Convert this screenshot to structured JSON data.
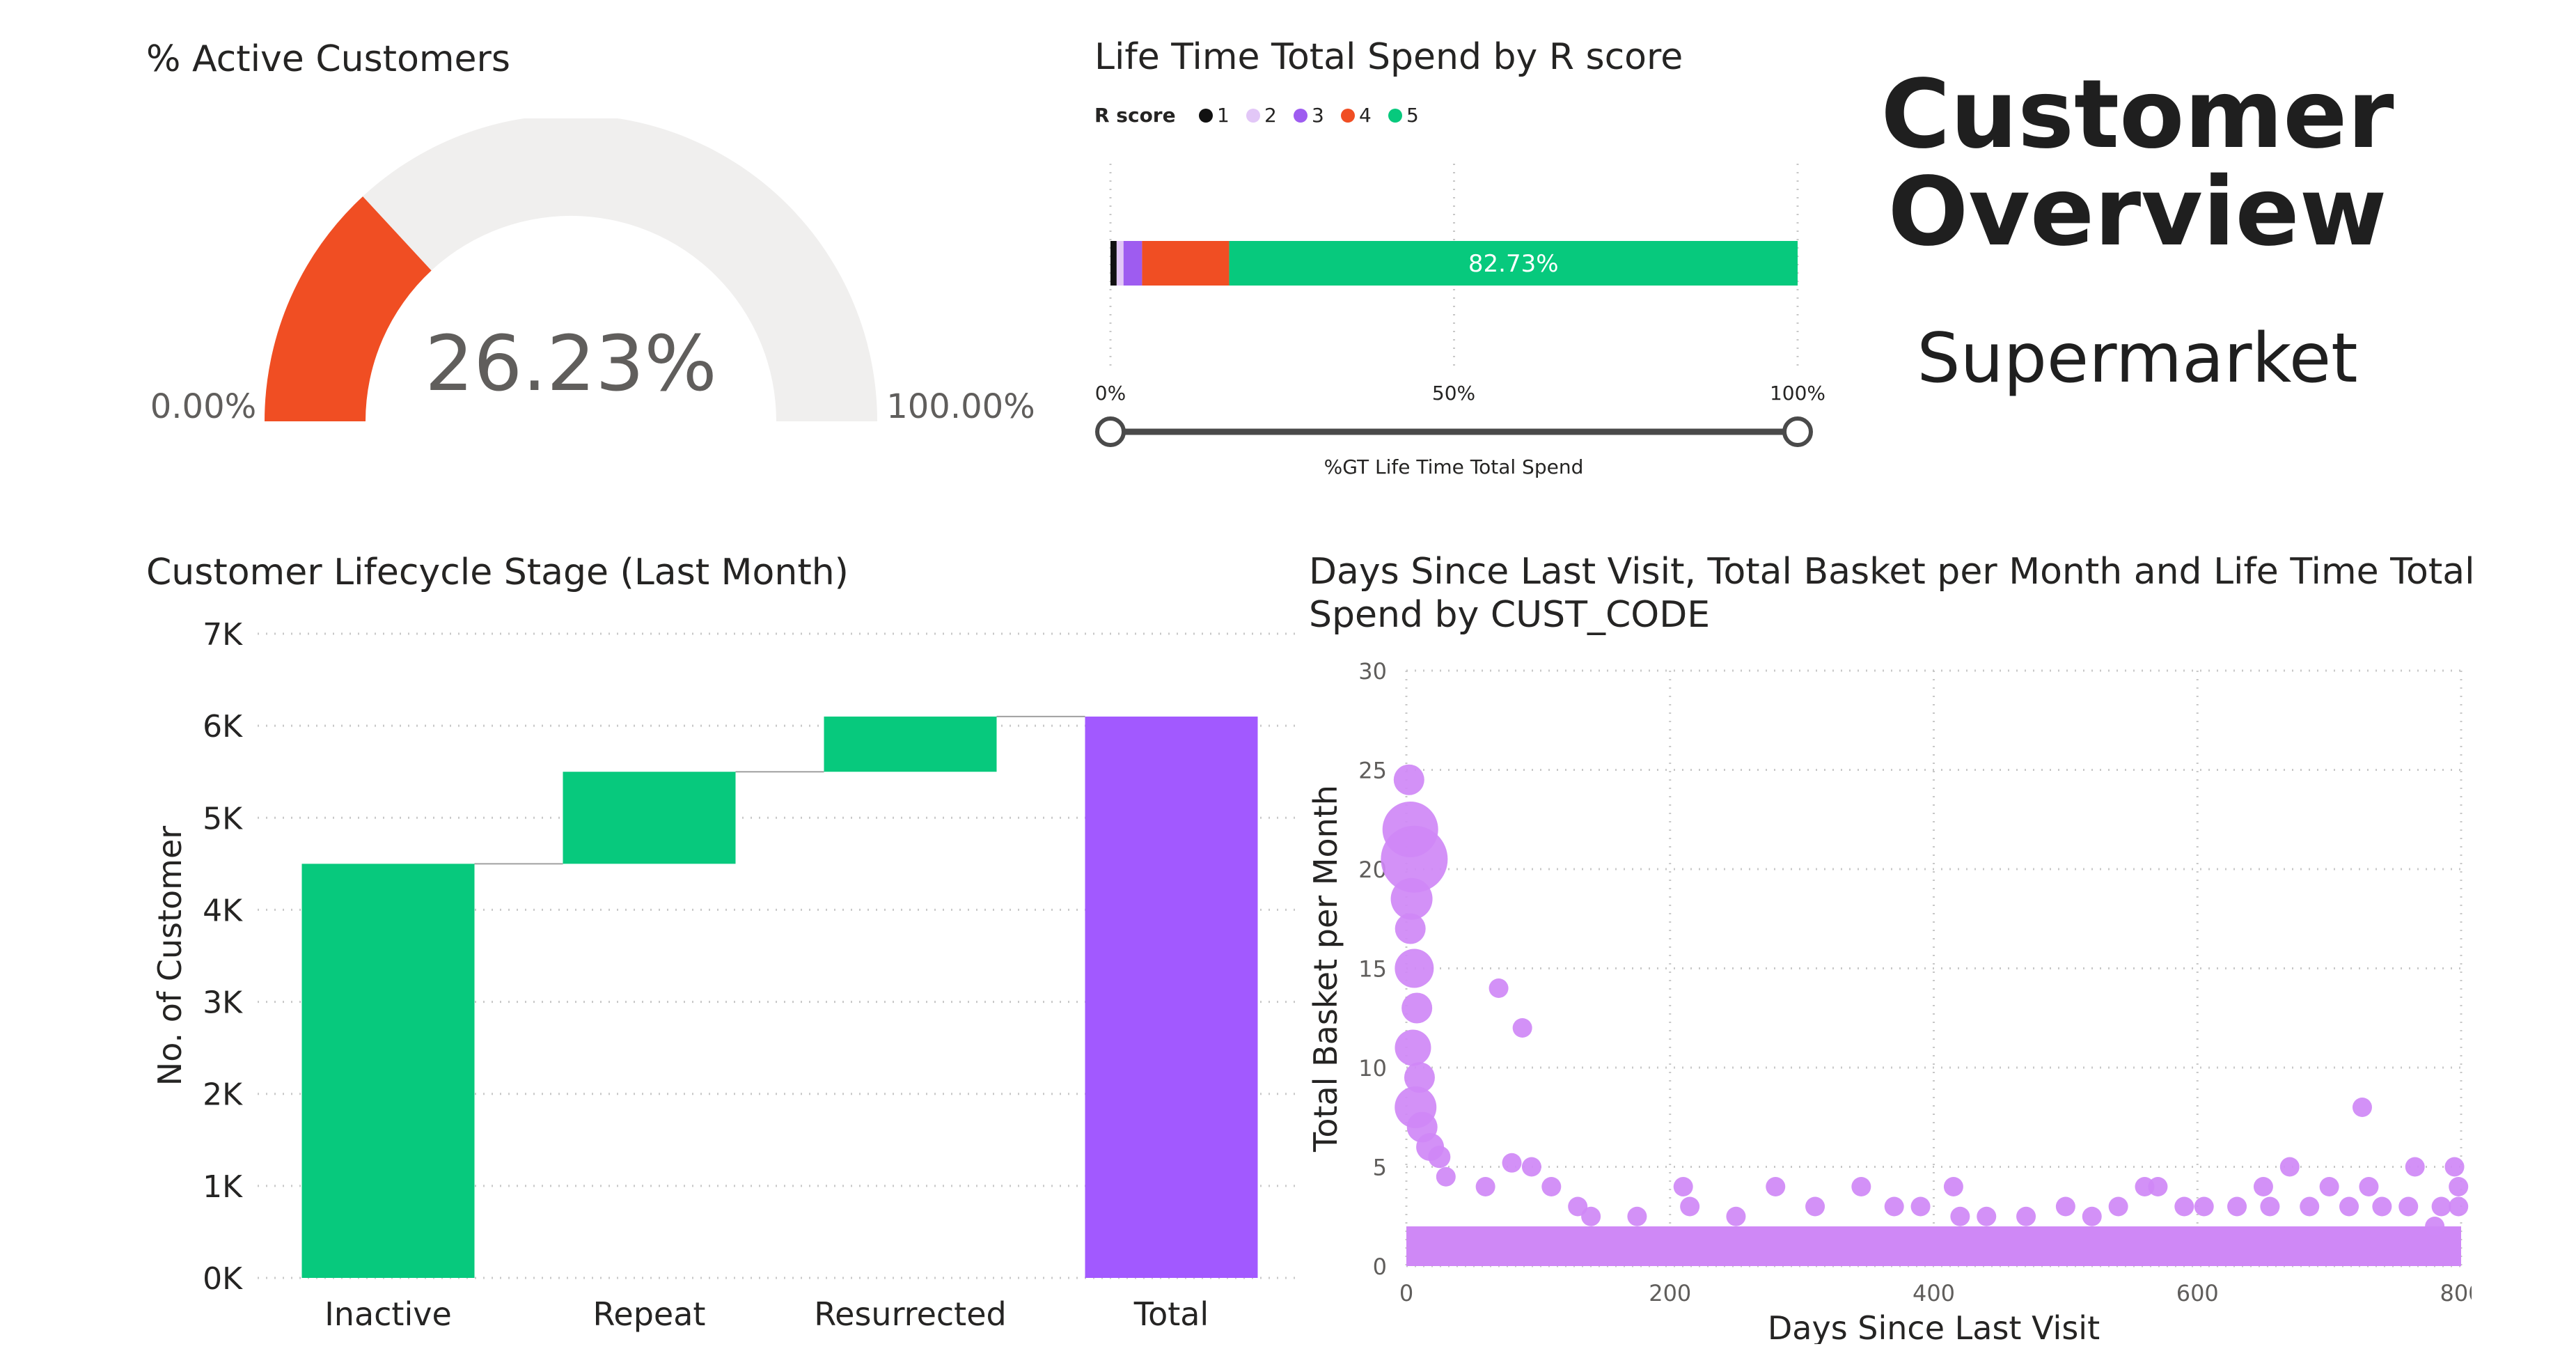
{
  "header": {
    "title_line1": "Customer",
    "title_line2": "Overview",
    "subtitle": "Supermarket"
  },
  "gauge": {
    "title": "% Active Customers",
    "value_label": "26.23%",
    "min_label": "0.00%",
    "max_label": "100.00%",
    "value": 26.23,
    "min": 0,
    "max": 100,
    "fill_color": "#F04E23",
    "track_color": "#F0EFEE"
  },
  "spend_bar": {
    "title": "Life Time Total Spend by R score",
    "legend_title": "R score",
    "axis_label": "%GT Life Time Total Spend",
    "ticks": [
      "0%",
      "50%",
      "100%"
    ],
    "data_label": "82.73%"
  },
  "waterfall_title": "Customer Lifecycle Stage (Last Month)",
  "scatter_title_line1": "Days Since Last Visit, Total Basket per Month and Life Time Total",
  "scatter_title_line2": "Spend by CUST_CODE",
  "chart_data": [
    {
      "type": "bar",
      "subtype": "100% stacked bar",
      "title": "Life Time Total Spend by R score",
      "legend": {
        "title": "R score",
        "position": "top-left"
      },
      "xlabel": "%GT Life Time Total Spend",
      "xlim": [
        0,
        100
      ],
      "xticks": [
        "0%",
        "50%",
        "100%"
      ],
      "series": [
        {
          "name": "1",
          "value": 0.9,
          "color": "#111111"
        },
        {
          "name": "2",
          "value": 1.0,
          "color": "#E2C7F7"
        },
        {
          "name": "3",
          "value": 2.7,
          "color": "#9E5CF0"
        },
        {
          "name": "4",
          "value": 12.67,
          "color": "#F04E23"
        },
        {
          "name": "5",
          "value": 82.73,
          "color": "#07C97D"
        }
      ],
      "data_labels": [
        "",
        "",
        "",
        "",
        "82.73%"
      ]
    },
    {
      "type": "bar",
      "subtype": "waterfall",
      "title": "Customer Lifecycle Stage (Last Month)",
      "ylabel": "No. of Customer",
      "ylim": [
        0,
        7000
      ],
      "yticks": [
        "0K",
        "1K",
        "2K",
        "3K",
        "4K",
        "5K",
        "6K",
        "7K"
      ],
      "categories": [
        "Inactive",
        "Repeat",
        "Resurrected",
        "Total"
      ],
      "values": [
        4500,
        1000,
        600,
        6100
      ],
      "kinds": [
        "increase",
        "increase",
        "increase",
        "total"
      ],
      "colors": {
        "increase": "#07C97D",
        "total": "#A259FF"
      },
      "grid": true
    },
    {
      "type": "scatter",
      "title": "Days Since Last Visit, Total Basket per Month and Life Time Total Spend by CUST_CODE",
      "xlabel": "Days Since Last Visit",
      "ylabel": "Total Basket per Month",
      "xlim": [
        0,
        800
      ],
      "ylim": [
        0,
        30
      ],
      "xticks": [
        "0",
        "200",
        "400",
        "600",
        "800"
      ],
      "yticks": [
        "0",
        "5",
        "10",
        "15",
        "20",
        "25",
        "30"
      ],
      "color": "#CF88F6",
      "grid": true,
      "points": [
        [
          2,
          24.5,
          22
        ],
        [
          3,
          22,
          40
        ],
        [
          6,
          20.5,
          48
        ],
        [
          4,
          18.5,
          30
        ],
        [
          3,
          17,
          22
        ],
        [
          6,
          15,
          28
        ],
        [
          8,
          13,
          22
        ],
        [
          5,
          11,
          26
        ],
        [
          10,
          9.5,
          22
        ],
        [
          7,
          8,
          30
        ],
        [
          12,
          7,
          22
        ],
        [
          18,
          6,
          20
        ],
        [
          25,
          5.5,
          16
        ],
        [
          30,
          4.5,
          14
        ],
        [
          70,
          14,
          14
        ],
        [
          88,
          12,
          14
        ],
        [
          725,
          8,
          14
        ],
        [
          80,
          5.2,
          14
        ],
        [
          95,
          5,
          14
        ],
        [
          60,
          4,
          14
        ],
        [
          110,
          4,
          14
        ],
        [
          130,
          3,
          14
        ],
        [
          140,
          2.5,
          14
        ],
        [
          175,
          2.5,
          14
        ],
        [
          210,
          4,
          14
        ],
        [
          215,
          3,
          14
        ],
        [
          250,
          2.5,
          14
        ],
        [
          280,
          4,
          14
        ],
        [
          310,
          3,
          14
        ],
        [
          345,
          4,
          14
        ],
        [
          370,
          3,
          14
        ],
        [
          390,
          3,
          14
        ],
        [
          415,
          4,
          14
        ],
        [
          420,
          2.5,
          14
        ],
        [
          440,
          2.5,
          14
        ],
        [
          470,
          2.5,
          14
        ],
        [
          500,
          3,
          14
        ],
        [
          520,
          2.5,
          14
        ],
        [
          540,
          3,
          14
        ],
        [
          560,
          4,
          14
        ],
        [
          570,
          4,
          14
        ],
        [
          590,
          3,
          14
        ],
        [
          605,
          3,
          14
        ],
        [
          630,
          3,
          14
        ],
        [
          650,
          4,
          14
        ],
        [
          655,
          3,
          14
        ],
        [
          670,
          5,
          14
        ],
        [
          685,
          3,
          14
        ],
        [
          700,
          4,
          14
        ],
        [
          715,
          3,
          14
        ],
        [
          730,
          4,
          14
        ],
        [
          740,
          3,
          14
        ],
        [
          760,
          3,
          14
        ],
        [
          765,
          5,
          14
        ],
        [
          785,
          3,
          14
        ],
        [
          795,
          5,
          14
        ],
        [
          798,
          4,
          14
        ],
        [
          798,
          3,
          14
        ],
        [
          780,
          2,
          14
        ]
      ],
      "dense_band": {
        "x": [
          0,
          800
        ],
        "y": [
          0,
          2
        ]
      }
    }
  ]
}
